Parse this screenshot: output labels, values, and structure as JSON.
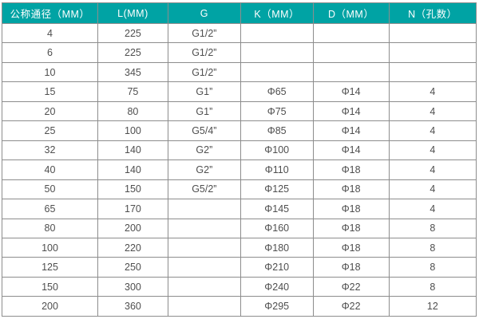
{
  "table": {
    "name": "valve-flange-dimension-table",
    "columns": [
      {
        "label": "公称通径（MM）",
        "width_pct": 20.2
      },
      {
        "label": "L(MM)",
        "width_pct": 14.8
      },
      {
        "label": "G",
        "width_pct": 15.3
      },
      {
        "label": "K（MM）",
        "width_pct": 15.3
      },
      {
        "label": "D（MM）",
        "width_pct": 16.0
      },
      {
        "label": "N（孔数）",
        "width_pct": 18.4
      }
    ],
    "rows": [
      [
        "4",
        "225",
        "G1/2”",
        "",
        "",
        ""
      ],
      [
        "6",
        "225",
        "G1/2”",
        "",
        "",
        ""
      ],
      [
        "10",
        "345",
        "G1/2”",
        "",
        "",
        ""
      ],
      [
        "15",
        "75",
        "G1”",
        "Φ65",
        "Φ14",
        "4"
      ],
      [
        "20",
        "80",
        "G1”",
        "Φ75",
        "Φ14",
        "4"
      ],
      [
        "25",
        "100",
        "G5/4”",
        "Φ85",
        "Φ14",
        "4"
      ],
      [
        "32",
        "140",
        "G2”",
        "Φ100",
        "Φ14",
        "4"
      ],
      [
        "40",
        "140",
        "G2”",
        "Φ110",
        "Φ18",
        "4"
      ],
      [
        "50",
        "150",
        "G5/2”",
        "Φ125",
        "Φ18",
        "4"
      ],
      [
        "65",
        "170",
        "",
        "Φ145",
        "Φ18",
        "4"
      ],
      [
        "80",
        "200",
        "",
        "Φ160",
        "Φ18",
        "8"
      ],
      [
        "100",
        "220",
        "",
        "Φ180",
        "Φ18",
        "8"
      ],
      [
        "125",
        "250",
        "",
        "Φ210",
        "Φ18",
        "8"
      ],
      [
        "150",
        "300",
        "",
        "Φ240",
        "Φ22",
        "8"
      ],
      [
        "200",
        "360",
        "",
        "Φ295",
        "Φ22",
        "12"
      ]
    ],
    "colors": {
      "header_background": "#00a3a4",
      "header_text": "#ffffff",
      "grid_line": "#8d8d8d",
      "cell_text": "#4f4f4f",
      "cell_background": "#ffffff"
    }
  },
  "chart_data": {
    "type": "table",
    "title": "",
    "columns": [
      "公称通径（MM）",
      "L(MM)",
      "G",
      "K（MM）",
      "D（MM）",
      "N（孔数）"
    ],
    "rows": [
      [
        "4",
        "225",
        "G1/2”",
        "",
        "",
        ""
      ],
      [
        "6",
        "225",
        "G1/2”",
        "",
        "",
        ""
      ],
      [
        "10",
        "345",
        "G1/2”",
        "",
        "",
        ""
      ],
      [
        "15",
        "75",
        "G1”",
        "Φ65",
        "Φ14",
        "4"
      ],
      [
        "20",
        "80",
        "G1”",
        "Φ75",
        "Φ14",
        "4"
      ],
      [
        "25",
        "100",
        "G5/4”",
        "Φ85",
        "Φ14",
        "4"
      ],
      [
        "32",
        "140",
        "G2”",
        "Φ100",
        "Φ14",
        "4"
      ],
      [
        "40",
        "140",
        "G2”",
        "Φ110",
        "Φ18",
        "4"
      ],
      [
        "50",
        "150",
        "G5/2”",
        "Φ125",
        "Φ18",
        "4"
      ],
      [
        "65",
        "170",
        "",
        "Φ145",
        "Φ18",
        "4"
      ],
      [
        "80",
        "200",
        "",
        "Φ160",
        "Φ18",
        "8"
      ],
      [
        "100",
        "220",
        "",
        "Φ180",
        "Φ18",
        "8"
      ],
      [
        "125",
        "250",
        "",
        "Φ210",
        "Φ18",
        "8"
      ],
      [
        "150",
        "300",
        "",
        "Φ240",
        "Φ22",
        "8"
      ],
      [
        "200",
        "360",
        "",
        "Φ295",
        "Φ22",
        "12"
      ]
    ]
  }
}
